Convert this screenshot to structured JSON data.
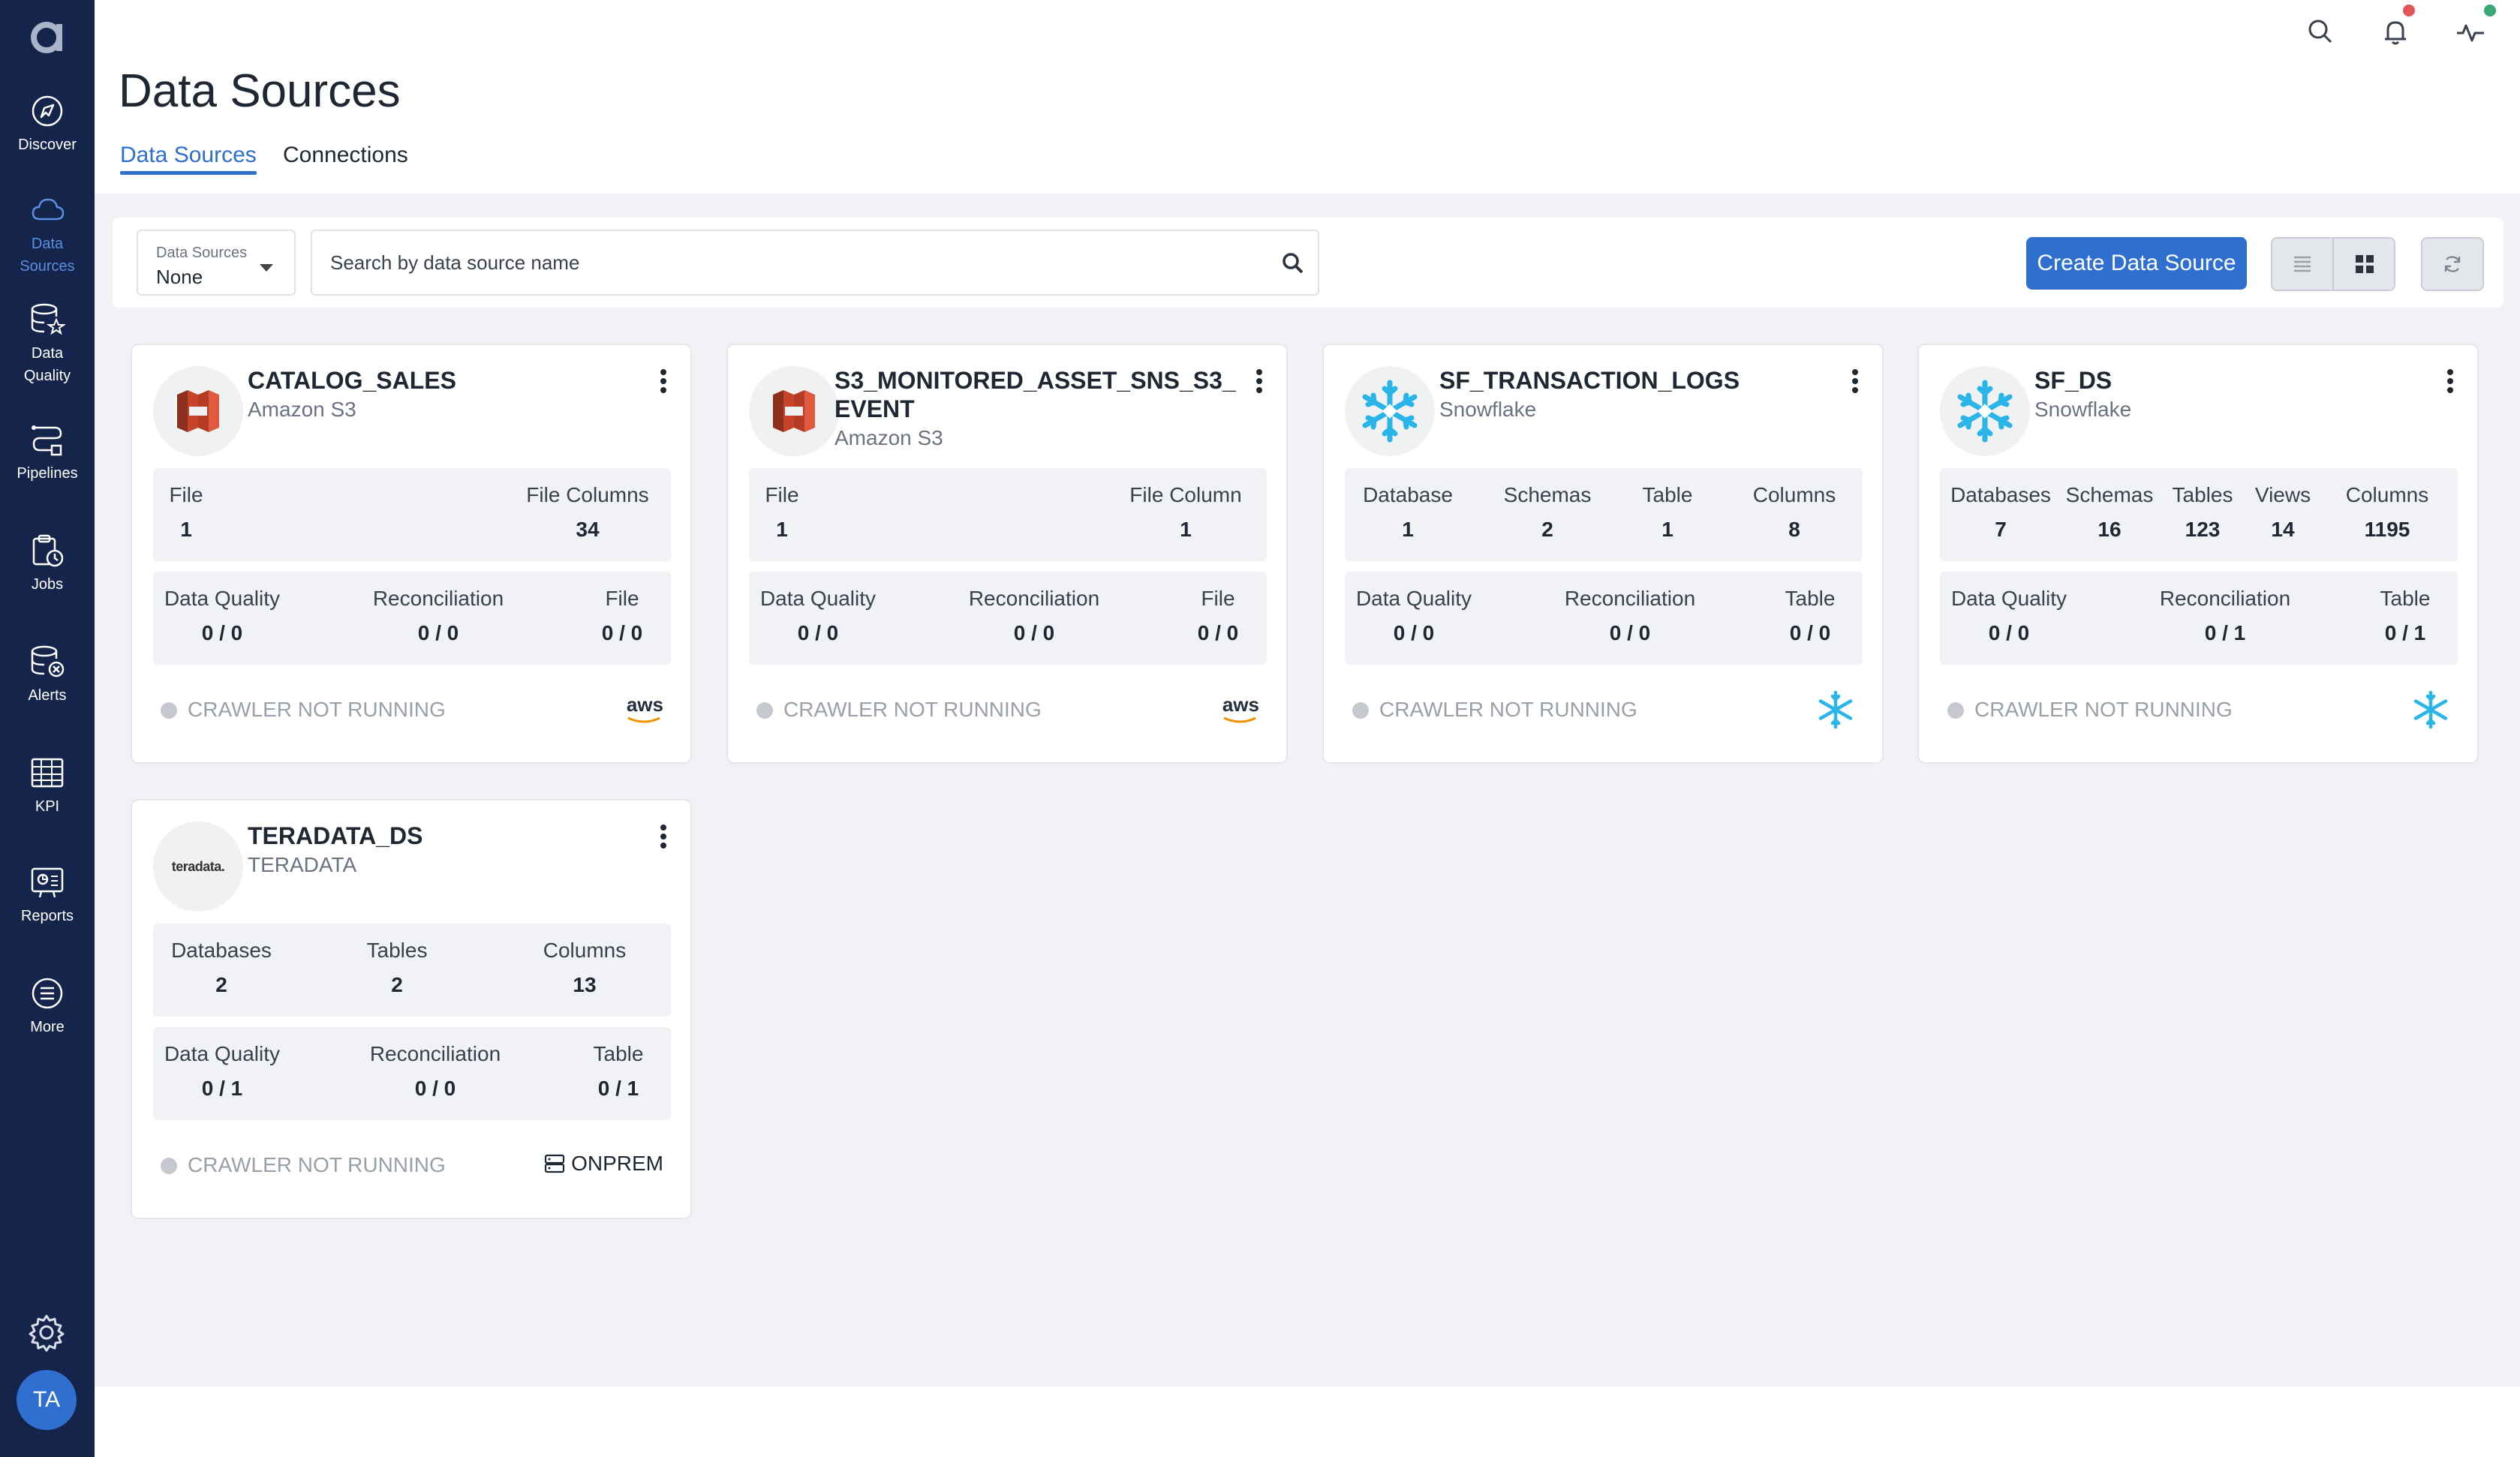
{
  "app": {
    "logo_letter": "a"
  },
  "sidebar": {
    "items": [
      {
        "label": "Discover",
        "icon": "compass-icon"
      },
      {
        "label_line1": "Data",
        "label_line2": "Sources",
        "icon": "cloud-icon"
      },
      {
        "label_line1": "Data",
        "label_line2": "Quality",
        "icon": "database-star-icon"
      },
      {
        "label": "Pipelines",
        "icon": "pipeline-icon"
      },
      {
        "label": "Jobs",
        "icon": "jobs-icon"
      },
      {
        "label": "Alerts",
        "icon": "alert-icon"
      },
      {
        "label": "KPI",
        "icon": "kpi-table-icon"
      },
      {
        "label": "Reports",
        "icon": "reports-icon"
      },
      {
        "label": "More",
        "icon": "more-icon"
      }
    ],
    "user_initials": "TA"
  },
  "header": {
    "title": "Data Sources",
    "tabs": [
      {
        "label": "Data Sources",
        "active": true
      },
      {
        "label": "Connections",
        "active": false
      }
    ]
  },
  "toolbar": {
    "filter_label": "Data Sources",
    "filter_value": "None",
    "search_placeholder": "Search by data source name",
    "create_label": "Create Data Source"
  },
  "colors": {
    "accent": "#2f6fd0",
    "sidebar": "#14244a",
    "snowflake": "#29b5e8",
    "s3": "#c7442b"
  },
  "cards": [
    {
      "name": "CATALOG_SALES",
      "type": "Amazon S3",
      "stats": [
        {
          "label": "File",
          "value": "1"
        },
        {
          "label": "File Columns",
          "value": "34"
        }
      ],
      "quality": [
        {
          "label": "Data Quality",
          "value": "0 / 0"
        },
        {
          "label": "Reconciliation",
          "value": "0 / 0"
        },
        {
          "label": "File",
          "value": "0 / 0"
        }
      ],
      "status": "CRAWLER NOT RUNNING",
      "provider": "aws"
    },
    {
      "name": "S3_MONITORED_ASSET_SNS_S3_EVENT",
      "type": "Amazon S3",
      "stats": [
        {
          "label": "File",
          "value": "1"
        },
        {
          "label": "File Column",
          "value": "1"
        }
      ],
      "quality": [
        {
          "label": "Data Quality",
          "value": "0 / 0"
        },
        {
          "label": "Reconciliation",
          "value": "0 / 0"
        },
        {
          "label": "File",
          "value": "0 / 0"
        }
      ],
      "status": "CRAWLER NOT RUNNING",
      "provider": "aws"
    },
    {
      "name": "SF_TRANSACTION_LOGS",
      "type": "Snowflake",
      "stats": [
        {
          "label": "Database",
          "value": "1"
        },
        {
          "label": "Schemas",
          "value": "2"
        },
        {
          "label": "Table",
          "value": "1"
        },
        {
          "label": "Columns",
          "value": "8"
        }
      ],
      "quality": [
        {
          "label": "Data Quality",
          "value": "0 / 0"
        },
        {
          "label": "Reconciliation",
          "value": "0 / 0"
        },
        {
          "label": "Table",
          "value": "0 / 0"
        }
      ],
      "status": "CRAWLER NOT RUNNING",
      "provider": "snowflake"
    },
    {
      "name": "SF_DS",
      "type": "Snowflake",
      "stats": [
        {
          "label": "Databases",
          "value": "7"
        },
        {
          "label": "Schemas",
          "value": "16"
        },
        {
          "label": "Tables",
          "value": "123"
        },
        {
          "label": "Views",
          "value": "14"
        },
        {
          "label": "Columns",
          "value": "1195"
        }
      ],
      "quality": [
        {
          "label": "Data Quality",
          "value": "0 / 0"
        },
        {
          "label": "Reconciliation",
          "value": "0 / 1"
        },
        {
          "label": "Table",
          "value": "0 / 1"
        }
      ],
      "status": "CRAWLER NOT RUNNING",
      "provider": "snowflake"
    },
    {
      "name": "TERADATA_DS",
      "type": "TERADATA",
      "logo_text": "teradata.",
      "stats": [
        {
          "label": "Databases",
          "value": "2"
        },
        {
          "label": "Tables",
          "value": "2"
        },
        {
          "label": "Columns",
          "value": "13"
        }
      ],
      "quality": [
        {
          "label": "Data Quality",
          "value": "0 / 1"
        },
        {
          "label": "Reconciliation",
          "value": "0 / 0"
        },
        {
          "label": "Table",
          "value": "0 / 1"
        }
      ],
      "status": "CRAWLER NOT RUNNING",
      "provider": "ONPREM"
    }
  ]
}
